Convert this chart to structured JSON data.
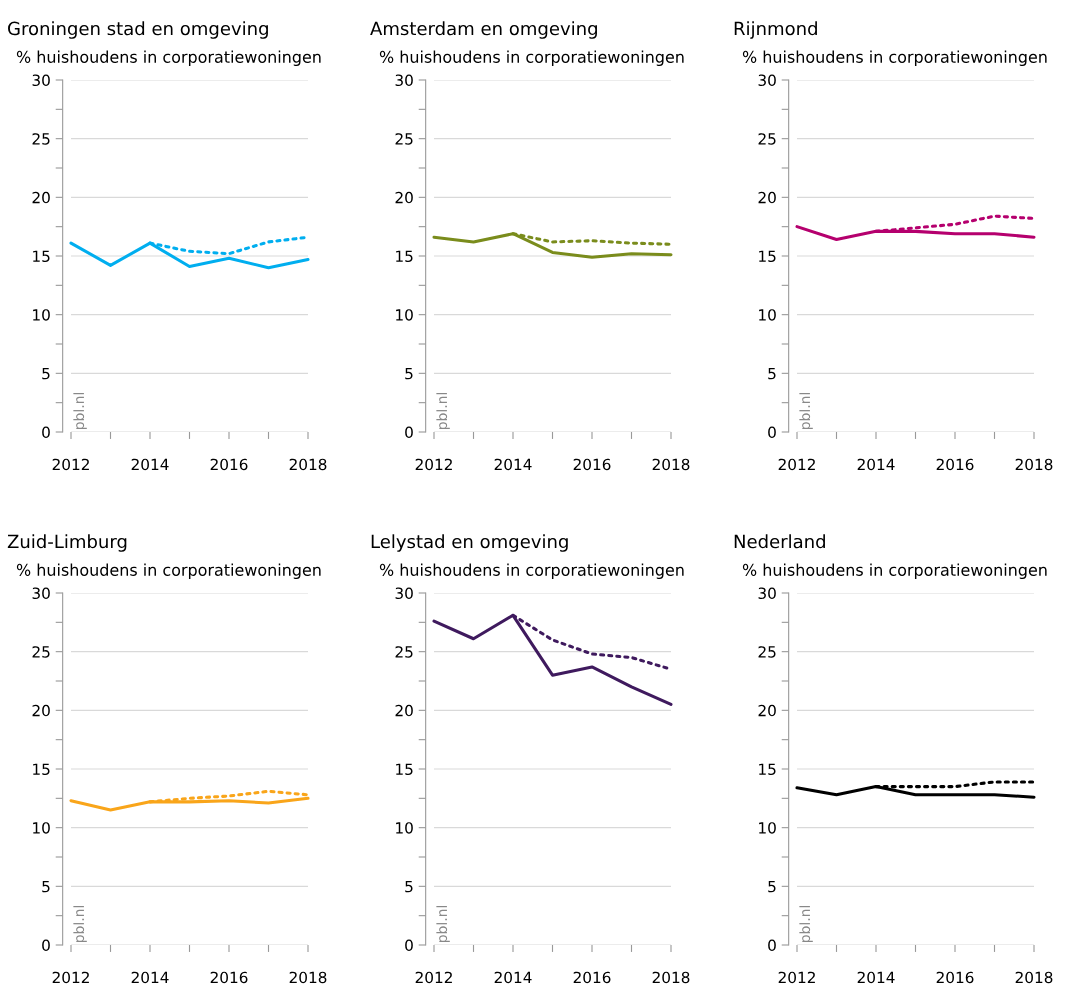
{
  "chart_data": [
    {
      "type": "line",
      "title": "Groningen stad en omgeving",
      "ylabel": "% huishoudens in corporatiewoningen",
      "x": [
        2012,
        2013,
        2014,
        2015,
        2016,
        2017,
        2018
      ],
      "xlim": [
        2012,
        2018
      ],
      "xticks": [
        2012,
        {
          "value": 2013,
          "label": null
        },
        2014,
        {
          "value": 2015,
          "label": null
        },
        2016,
        {
          "value": 2017,
          "label": null
        },
        2018
      ],
      "ylim": [
        0,
        30
      ],
      "yticks": [
        0,
        {
          "value": 2.5,
          "label": null
        },
        5,
        {
          "value": 7.5,
          "label": null
        },
        10,
        {
          "value": 12.5,
          "label": null
        },
        15,
        {
          "value": 17.5,
          "label": null
        },
        20,
        {
          "value": 22.5,
          "label": null
        },
        25,
        {
          "value": 27.5,
          "label": null
        },
        30
      ],
      "grid": "y",
      "legend": false,
      "annotations": [
        "pbl.nl"
      ],
      "series": [
        {
          "color": "#00aeef",
          "line_style": "solid",
          "values": [
            16.1,
            14.2,
            16.1,
            14.1,
            14.8,
            14.0,
            14.7
          ]
        },
        {
          "color": "#00aeef",
          "line_style": "dotted",
          "x": [
            2014,
            2015,
            2016,
            2017,
            2018
          ],
          "values": [
            16.1,
            15.4,
            15.2,
            16.2,
            16.6
          ]
        }
      ]
    },
    {
      "type": "line",
      "title": "Amsterdam en omgeving",
      "ylabel": "% huishoudens in corporatiewoningen",
      "x": [
        2012,
        2013,
        2014,
        2015,
        2016,
        2017,
        2018
      ],
      "xlim": [
        2012,
        2018
      ],
      "xticks": [
        2012,
        {
          "value": 2013,
          "label": null
        },
        2014,
        {
          "value": 2015,
          "label": null
        },
        2016,
        {
          "value": 2017,
          "label": null
        },
        2018
      ],
      "ylim": [
        0,
        30
      ],
      "yticks": [
        0,
        {
          "value": 2.5,
          "label": null
        },
        5,
        {
          "value": 7.5,
          "label": null
        },
        10,
        {
          "value": 12.5,
          "label": null
        },
        15,
        {
          "value": 17.5,
          "label": null
        },
        20,
        {
          "value": 22.5,
          "label": null
        },
        25,
        {
          "value": 27.5,
          "label": null
        },
        30
      ],
      "grid": "y",
      "legend": false,
      "annotations": [
        "pbl.nl"
      ],
      "series": [
        {
          "color": "#7a8c1c",
          "line_style": "solid",
          "values": [
            16.6,
            16.2,
            16.9,
            15.3,
            14.9,
            15.2,
            15.1
          ]
        },
        {
          "color": "#7a8c1c",
          "line_style": "dotted",
          "x": [
            2014,
            2015,
            2016,
            2017,
            2018
          ],
          "values": [
            16.9,
            16.2,
            16.3,
            16.1,
            16.0
          ]
        }
      ]
    },
    {
      "type": "line",
      "title": "Rijnmond",
      "ylabel": "% huishoudens in corporatiewoningen",
      "x": [
        2012,
        2013,
        2014,
        2015,
        2016,
        2017,
        2018
      ],
      "xlim": [
        2012,
        2018
      ],
      "xticks": [
        2012,
        {
          "value": 2013,
          "label": null
        },
        2014,
        {
          "value": 2015,
          "label": null
        },
        2016,
        {
          "value": 2017,
          "label": null
        },
        2018
      ],
      "ylim": [
        0,
        30
      ],
      "yticks": [
        0,
        {
          "value": 2.5,
          "label": null
        },
        5,
        {
          "value": 7.5,
          "label": null
        },
        10,
        {
          "value": 12.5,
          "label": null
        },
        15,
        {
          "value": 17.5,
          "label": null
        },
        20,
        {
          "value": 22.5,
          "label": null
        },
        25,
        {
          "value": 27.5,
          "label": null
        },
        30
      ],
      "grid": "y",
      "legend": false,
      "annotations": [
        "pbl.nl"
      ],
      "series": [
        {
          "color": "#b5006e",
          "line_style": "solid",
          "values": [
            17.5,
            16.4,
            17.1,
            17.1,
            16.9,
            16.9,
            16.6
          ]
        },
        {
          "color": "#b5006e",
          "line_style": "dotted",
          "x": [
            2014,
            2015,
            2016,
            2017,
            2018
          ],
          "values": [
            17.1,
            17.4,
            17.7,
            18.4,
            18.2
          ]
        }
      ]
    },
    {
      "type": "line",
      "title": "Zuid-Limburg",
      "ylabel": "% huishoudens in corporatiewoningen",
      "x": [
        2012,
        2013,
        2014,
        2015,
        2016,
        2017,
        2018
      ],
      "xlim": [
        2012,
        2018
      ],
      "xticks": [
        2012,
        {
          "value": 2013,
          "label": null
        },
        2014,
        {
          "value": 2015,
          "label": null
        },
        2016,
        {
          "value": 2017,
          "label": null
        },
        2018
      ],
      "ylim": [
        0,
        30
      ],
      "yticks": [
        0,
        {
          "value": 2.5,
          "label": null
        },
        5,
        {
          "value": 7.5,
          "label": null
        },
        10,
        {
          "value": 12.5,
          "label": null
        },
        15,
        {
          "value": 17.5,
          "label": null
        },
        20,
        {
          "value": 22.5,
          "label": null
        },
        25,
        {
          "value": 27.5,
          "label": null
        },
        30
      ],
      "grid": "y",
      "legend": false,
      "annotations": [
        "pbl.nl"
      ],
      "series": [
        {
          "color": "#f9a51a",
          "line_style": "solid",
          "values": [
            12.3,
            11.5,
            12.2,
            12.2,
            12.3,
            12.1,
            12.5
          ]
        },
        {
          "color": "#f9a51a",
          "line_style": "dotted",
          "x": [
            2014,
            2015,
            2016,
            2017,
            2018
          ],
          "values": [
            12.2,
            12.5,
            12.7,
            13.1,
            12.8
          ]
        }
      ]
    },
    {
      "type": "line",
      "title": "Lelystad en omgeving",
      "ylabel": "% huishoudens in corporatiewoningen",
      "x": [
        2012,
        2013,
        2014,
        2015,
        2016,
        2017,
        2018
      ],
      "xlim": [
        2012,
        2018
      ],
      "xticks": [
        2012,
        {
          "value": 2013,
          "label": null
        },
        2014,
        {
          "value": 2015,
          "label": null
        },
        2016,
        {
          "value": 2017,
          "label": null
        },
        2018
      ],
      "ylim": [
        0,
        30
      ],
      "yticks": [
        0,
        {
          "value": 2.5,
          "label": null
        },
        5,
        {
          "value": 7.5,
          "label": null
        },
        10,
        {
          "value": 12.5,
          "label": null
        },
        15,
        {
          "value": 17.5,
          "label": null
        },
        20,
        {
          "value": 22.5,
          "label": null
        },
        25,
        {
          "value": 27.5,
          "label": null
        },
        30
      ],
      "grid": "y",
      "legend": false,
      "annotations": [
        "pbl.nl"
      ],
      "series": [
        {
          "color": "#3f1a5e",
          "line_style": "solid",
          "values": [
            27.6,
            26.1,
            28.1,
            23.0,
            23.7,
            22.0,
            20.5
          ]
        },
        {
          "color": "#3f1a5e",
          "line_style": "dotted",
          "x": [
            2014,
            2015,
            2016,
            2017,
            2018
          ],
          "values": [
            28.1,
            26.0,
            24.8,
            24.5,
            23.5
          ]
        }
      ]
    },
    {
      "type": "line",
      "title": "Nederland",
      "ylabel": "% huishoudens in corporatiewoningen",
      "x": [
        2012,
        2013,
        2014,
        2015,
        2016,
        2017,
        2018
      ],
      "xlim": [
        2012,
        2018
      ],
      "xticks": [
        2012,
        {
          "value": 2013,
          "label": null
        },
        2014,
        {
          "value": 2015,
          "label": null
        },
        2016,
        {
          "value": 2017,
          "label": null
        },
        2018
      ],
      "ylim": [
        0,
        30
      ],
      "yticks": [
        0,
        {
          "value": 2.5,
          "label": null
        },
        5,
        {
          "value": 7.5,
          "label": null
        },
        10,
        {
          "value": 12.5,
          "label": null
        },
        15,
        {
          "value": 17.5,
          "label": null
        },
        20,
        {
          "value": 22.5,
          "label": null
        },
        25,
        {
          "value": 27.5,
          "label": null
        },
        30
      ],
      "grid": "y",
      "legend": false,
      "annotations": [
        "pbl.nl"
      ],
      "series": [
        {
          "color": "#000000",
          "line_style": "solid",
          "values": [
            13.4,
            12.8,
            13.5,
            12.8,
            12.8,
            12.8,
            12.6
          ]
        },
        {
          "color": "#000000",
          "line_style": "dotted",
          "x": [
            2014,
            2015,
            2016,
            2017,
            2018
          ],
          "values": [
            13.5,
            13.5,
            13.5,
            13.9,
            13.9
          ]
        }
      ]
    }
  ]
}
